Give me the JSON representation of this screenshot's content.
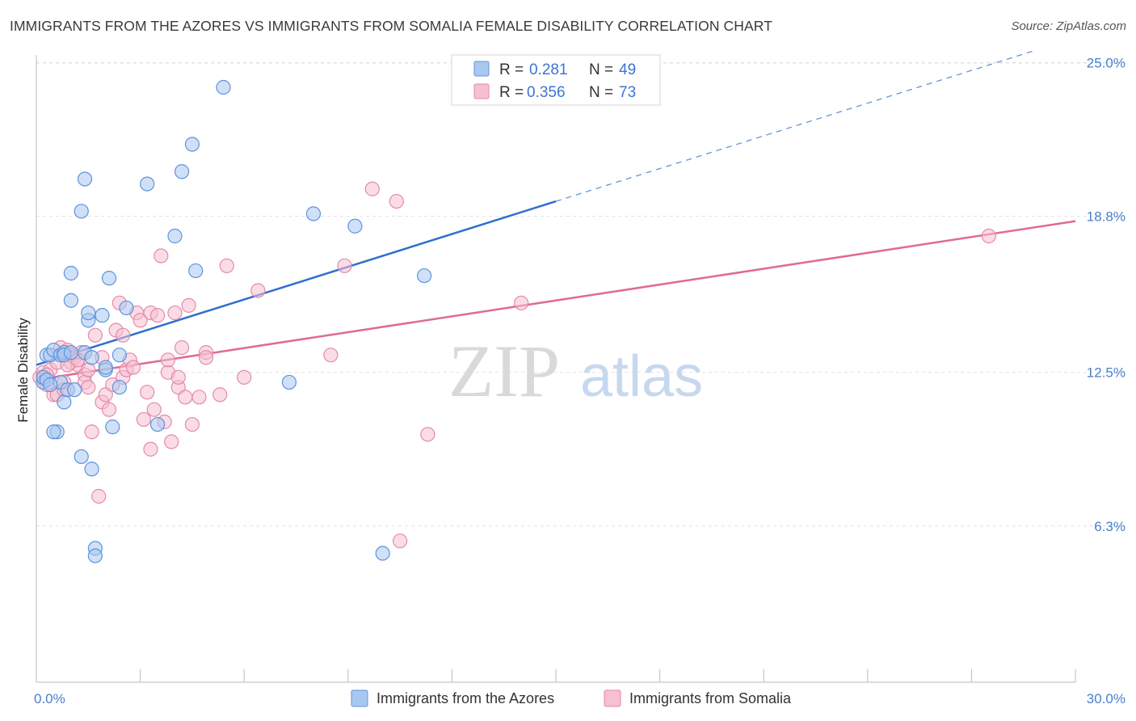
{
  "title": "IMMIGRANTS FROM THE AZORES VS IMMIGRANTS FROM SOMALIA FEMALE DISABILITY CORRELATION CHART",
  "source": "Source: ZipAtlas.com",
  "watermark": {
    "zip": "ZIP",
    "atlas": "atlas"
  },
  "colors": {
    "azores_fill": "#a9c8f0",
    "azores_stroke": "#5d93dd",
    "azores_line": "#2f6fcf",
    "somalia_fill": "#f6bfd2",
    "somalia_stroke": "#e58aa9",
    "somalia_line": "#e0699a",
    "axis_text": "#4a7fc9",
    "grid": "#e2e2e2"
  },
  "legend": {
    "rows": [
      {
        "r_label": "R =",
        "r_value": "0.281",
        "n_label": "N =",
        "n_value": "49"
      },
      {
        "r_label": "R =",
        "r_value": "0.356",
        "n_label": "N =",
        "n_value": "73"
      }
    ]
  },
  "chart_data": {
    "type": "scatter",
    "title": "IMMIGRANTS FROM THE AZORES VS IMMIGRANTS FROM SOMALIA FEMALE DISABILITY CORRELATION CHART",
    "xlabel": "",
    "ylabel": "Female Disability",
    "xlim": [
      0,
      30
    ],
    "ylim": [
      0,
      25.5
    ],
    "x_tick_labels": [
      "0.0%",
      "30.0%"
    ],
    "y_ticks": [
      6.3,
      12.5,
      18.8,
      25.0
    ],
    "y_tick_labels": [
      "6.3%",
      "12.5%",
      "18.8%",
      "25.0%"
    ],
    "grid": "horizontal dashed",
    "legend_position": "top-center",
    "series": [
      {
        "name": "Immigrants from the Azores",
        "r": 0.281,
        "n": 49,
        "trend": {
          "x0": 0,
          "y0": 12.8,
          "x1": 15,
          "y1": 19.4,
          "dashed_to_x": 30,
          "dashed_to_y": 26.0
        },
        "points": [
          [
            0.2,
            12.1
          ],
          [
            0.2,
            12.3
          ],
          [
            0.3,
            13.2
          ],
          [
            0.4,
            13.2
          ],
          [
            0.5,
            13.4
          ],
          [
            0.3,
            12.2
          ],
          [
            0.6,
            10.1
          ],
          [
            0.5,
            10.1
          ],
          [
            0.7,
            13.2
          ],
          [
            0.7,
            12.1
          ],
          [
            0.8,
            11.3
          ],
          [
            0.8,
            13.3
          ],
          [
            0.9,
            11.8
          ],
          [
            0.8,
            13.2
          ],
          [
            1.0,
            13.3
          ],
          [
            1.1,
            11.8
          ],
          [
            1.0,
            16.5
          ],
          [
            1.0,
            15.4
          ],
          [
            1.3,
            19.0
          ],
          [
            1.4,
            20.3
          ],
          [
            1.4,
            13.3
          ],
          [
            1.5,
            14.6
          ],
          [
            1.5,
            14.9
          ],
          [
            1.3,
            9.1
          ],
          [
            1.6,
            13.1
          ],
          [
            1.6,
            8.6
          ],
          [
            1.7,
            5.4
          ],
          [
            1.7,
            5.1
          ],
          [
            1.9,
            14.8
          ],
          [
            2.0,
            12.6
          ],
          [
            2.1,
            16.3
          ],
          [
            2.2,
            10.3
          ],
          [
            2.4,
            13.2
          ],
          [
            2.4,
            11.9
          ],
          [
            2.6,
            15.1
          ],
          [
            3.5,
            10.4
          ],
          [
            3.2,
            20.1
          ],
          [
            4.0,
            18.0
          ],
          [
            4.2,
            20.6
          ],
          [
            4.5,
            21.7
          ],
          [
            4.6,
            16.6
          ],
          [
            5.4,
            24.0
          ],
          [
            7.3,
            12.1
          ],
          [
            8.0,
            18.9
          ],
          [
            9.2,
            18.4
          ],
          [
            10.0,
            5.2
          ],
          [
            11.2,
            16.4
          ],
          [
            2.0,
            12.7
          ],
          [
            0.4,
            12.0
          ]
        ]
      },
      {
        "name": "Immigrants from Somalia",
        "r": 0.356,
        "n": 73,
        "trend": {
          "x0": 0,
          "y0": 12.2,
          "x1": 30,
          "y1": 18.6
        },
        "points": [
          [
            0.1,
            12.3
          ],
          [
            0.2,
            12.5
          ],
          [
            0.3,
            12.0
          ],
          [
            0.4,
            12.6
          ],
          [
            0.5,
            11.6
          ],
          [
            0.6,
            11.6
          ],
          [
            0.6,
            12.9
          ],
          [
            0.7,
            13.5
          ],
          [
            0.8,
            12.1
          ],
          [
            0.8,
            11.8
          ],
          [
            0.9,
            13.4
          ],
          [
            1.0,
            13.2
          ],
          [
            1.0,
            12.9
          ],
          [
            1.1,
            13.1
          ],
          [
            1.2,
            12.8
          ],
          [
            1.3,
            13.3
          ],
          [
            1.4,
            12.4
          ],
          [
            1.4,
            12.1
          ],
          [
            1.5,
            11.9
          ],
          [
            1.6,
            10.1
          ],
          [
            1.7,
            14.0
          ],
          [
            1.8,
            7.5
          ],
          [
            1.9,
            11.3
          ],
          [
            1.9,
            13.1
          ],
          [
            2.0,
            11.6
          ],
          [
            2.1,
            11.0
          ],
          [
            2.2,
            12.0
          ],
          [
            2.3,
            14.2
          ],
          [
            2.4,
            15.3
          ],
          [
            2.5,
            14.0
          ],
          [
            2.5,
            12.3
          ],
          [
            2.6,
            12.6
          ],
          [
            2.7,
            13.0
          ],
          [
            2.9,
            14.9
          ],
          [
            3.0,
            14.6
          ],
          [
            3.1,
            10.6
          ],
          [
            3.2,
            11.7
          ],
          [
            3.3,
            9.4
          ],
          [
            3.3,
            14.9
          ],
          [
            3.4,
            11.0
          ],
          [
            3.5,
            14.8
          ],
          [
            3.6,
            17.2
          ],
          [
            3.7,
            10.5
          ],
          [
            3.8,
            12.5
          ],
          [
            3.8,
            13.0
          ],
          [
            3.9,
            9.7
          ],
          [
            4.0,
            14.9
          ],
          [
            4.1,
            11.9
          ],
          [
            4.2,
            13.5
          ],
          [
            4.3,
            11.5
          ],
          [
            4.4,
            15.2
          ],
          [
            4.5,
            10.4
          ],
          [
            4.7,
            11.5
          ],
          [
            4.9,
            13.3
          ],
          [
            4.9,
            13.1
          ],
          [
            5.3,
            11.6
          ],
          [
            5.5,
            16.8
          ],
          [
            6.0,
            12.3
          ],
          [
            6.4,
            15.8
          ],
          [
            8.5,
            13.2
          ],
          [
            8.9,
            16.8
          ],
          [
            9.7,
            19.9
          ],
          [
            10.4,
            19.4
          ],
          [
            10.5,
            5.7
          ],
          [
            11.3,
            10.0
          ],
          [
            14.0,
            15.3
          ],
          [
            27.5,
            18.0
          ],
          [
            0.9,
            12.8
          ],
          [
            1.2,
            13.0
          ],
          [
            2.8,
            12.7
          ],
          [
            0.3,
            12.4
          ],
          [
            1.5,
            12.6
          ],
          [
            4.1,
            12.3
          ]
        ]
      }
    ]
  }
}
